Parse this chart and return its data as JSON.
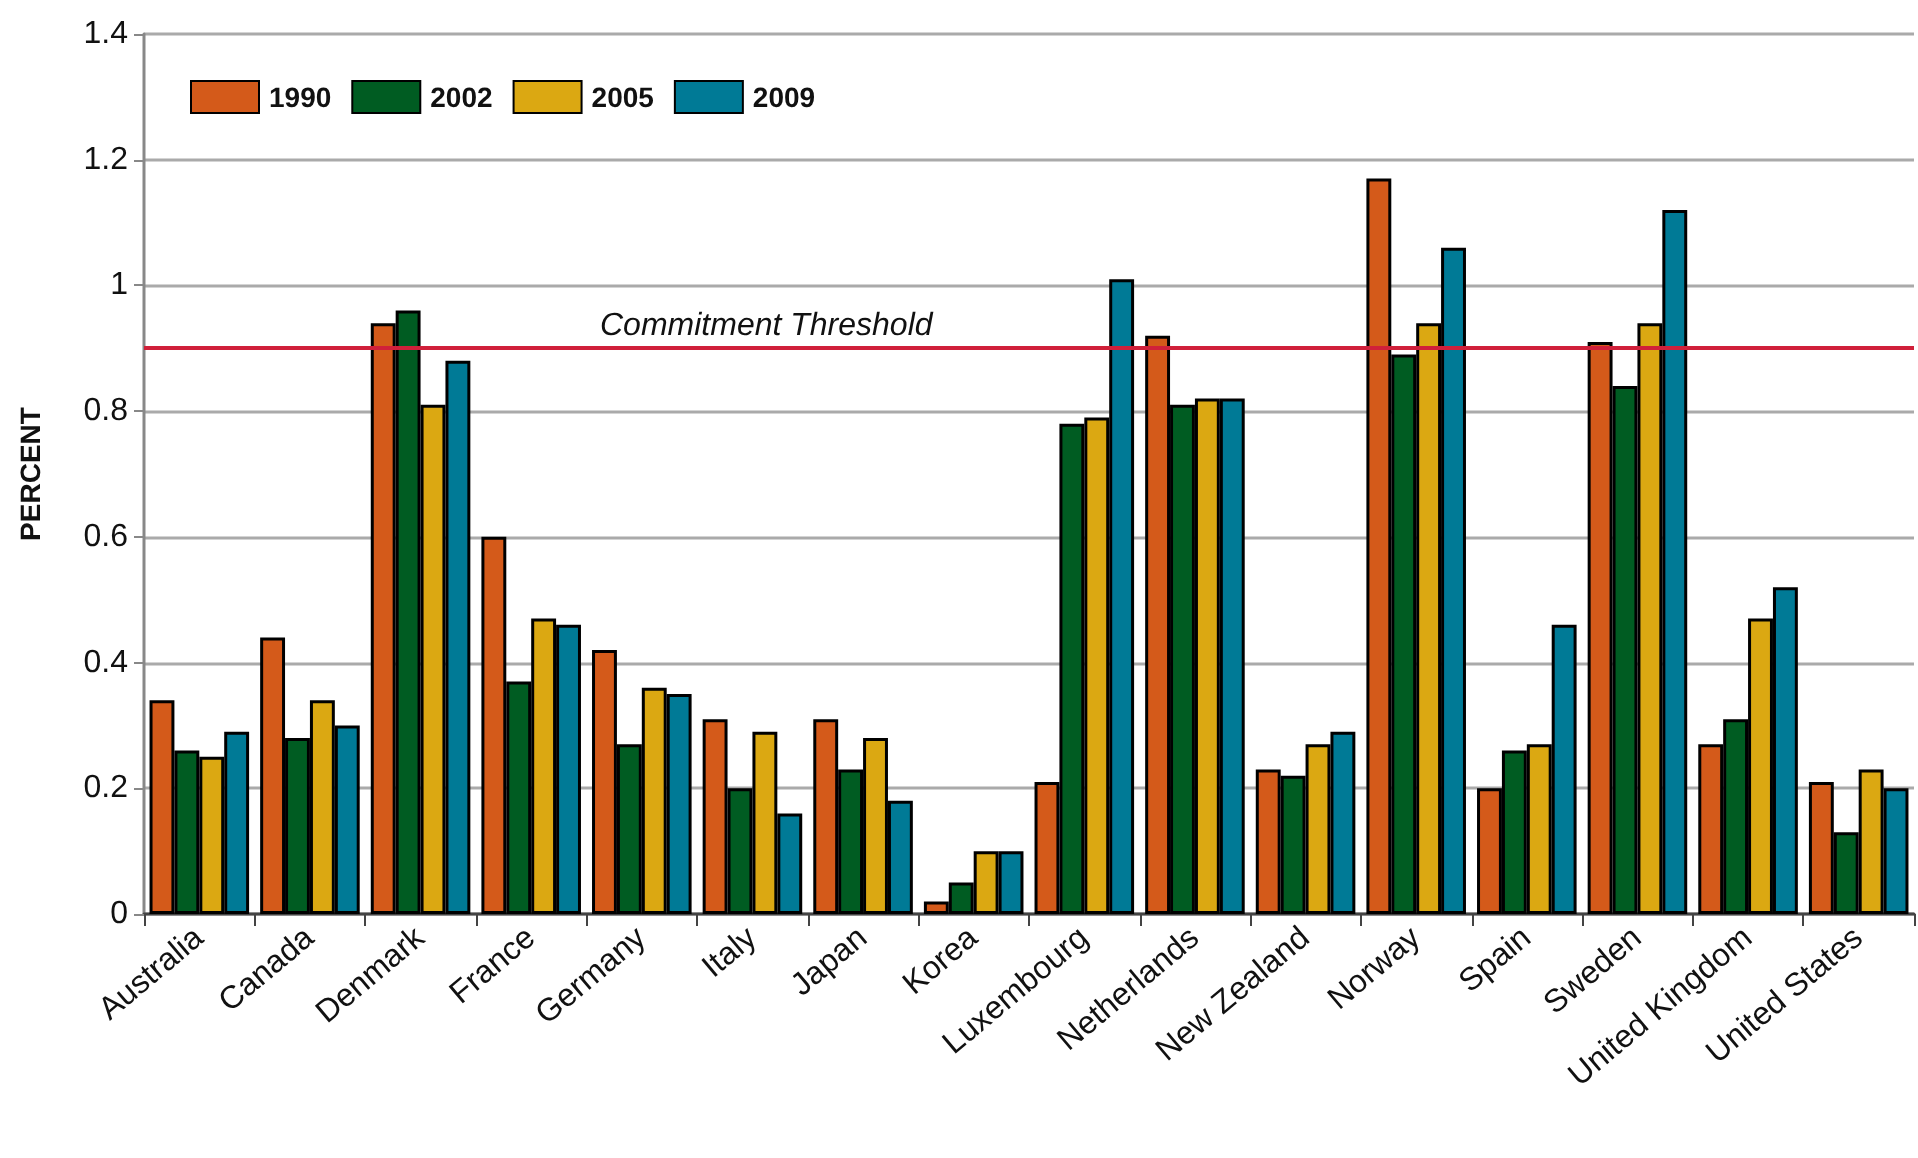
{
  "chart_data": {
    "type": "bar",
    "ylabel": "PERCENT",
    "categories": [
      "Australia",
      "Canada",
      "Denmark",
      "France",
      "Germany",
      "Italy",
      "Japan",
      "Korea",
      "Luxembourg",
      "Netherlands",
      "New Zealand",
      "Norway",
      "Spain",
      "Sweden",
      "United Kingdom",
      "United States"
    ],
    "series": [
      {
        "name": "1990",
        "color": "#d45a1a",
        "values": [
          0.34,
          0.44,
          0.94,
          0.6,
          0.42,
          0.31,
          0.31,
          0.02,
          0.21,
          0.92,
          0.23,
          1.17,
          0.2,
          0.91,
          0.27,
          0.21
        ]
      },
      {
        "name": "2002",
        "color": "#005c22",
        "values": [
          0.26,
          0.28,
          0.96,
          0.37,
          0.27,
          0.2,
          0.23,
          0.05,
          0.78,
          0.81,
          0.22,
          0.89,
          0.26,
          0.84,
          0.31,
          0.13
        ]
      },
      {
        "name": "2005",
        "color": "#dba812",
        "values": [
          0.25,
          0.34,
          0.81,
          0.47,
          0.36,
          0.29,
          0.28,
          0.1,
          0.79,
          0.82,
          0.27,
          0.94,
          0.27,
          0.94,
          0.47,
          0.23
        ]
      },
      {
        "name": "2009",
        "color": "#007a96",
        "values": [
          0.29,
          0.3,
          0.88,
          0.46,
          0.35,
          0.16,
          0.18,
          0.1,
          1.01,
          0.82,
          0.29,
          1.06,
          0.46,
          1.12,
          0.52,
          0.2
        ]
      }
    ],
    "ylim": [
      0,
      1.4
    ],
    "yticks": [
      0,
      0.2,
      0.4,
      0.6,
      0.8,
      1,
      1.2,
      1.4
    ],
    "ref_lines": [
      {
        "axis": "y",
        "value": 0.9,
        "label": "Commitment Threshold",
        "color": "#d0203a"
      }
    ],
    "grid": "y",
    "legend": "top left"
  }
}
